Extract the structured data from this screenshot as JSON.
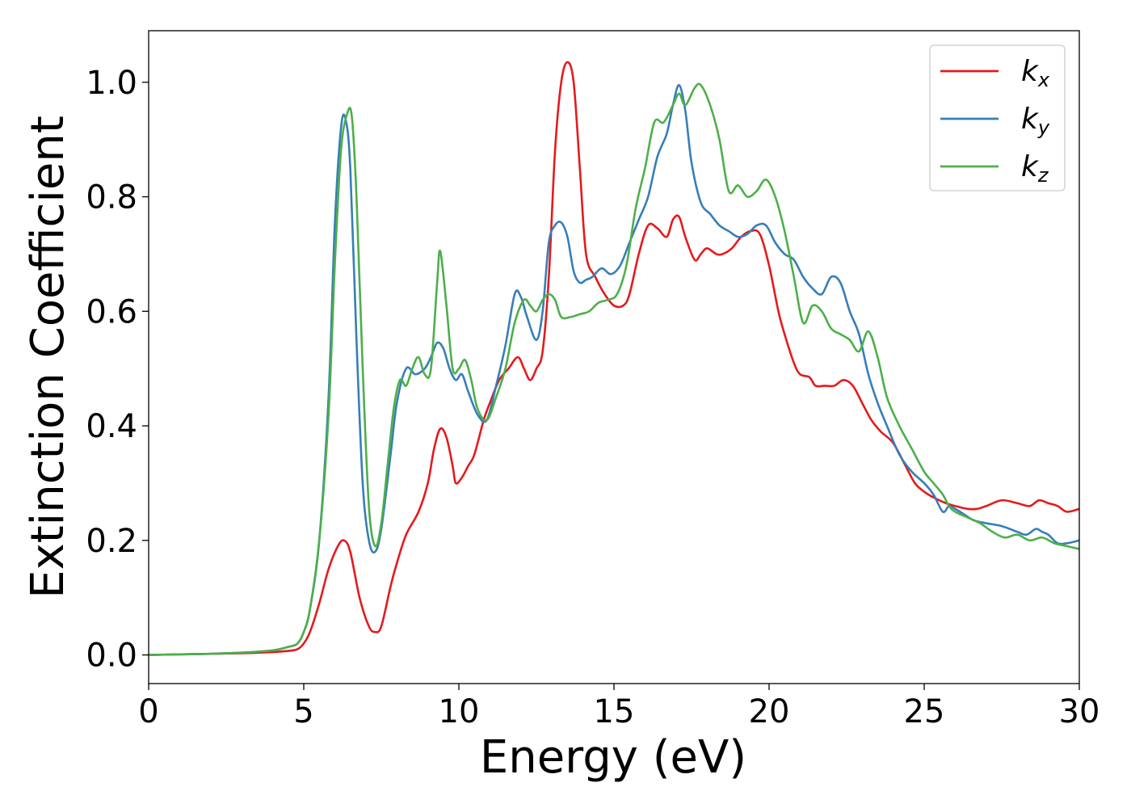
{
  "chart_data": {
    "type": "line",
    "xlabel": "Energy (eV)",
    "ylabel": "Extinction Coefficient",
    "xlim": [
      0,
      30
    ],
    "ylim": [
      -0.05,
      1.09
    ],
    "xticks": [
      0,
      5,
      10,
      15,
      20,
      25,
      30
    ],
    "xtick_labels": [
      "0",
      "5",
      "10",
      "15",
      "20",
      "25",
      "30"
    ],
    "yticks": [
      0.0,
      0.2,
      0.4,
      0.6,
      0.8,
      1.0
    ],
    "ytick_labels": [
      "0.0",
      "0.2",
      "0.4",
      "0.6",
      "0.8",
      "1.0"
    ],
    "grid": false,
    "legend_position": "top-right",
    "series": [
      {
        "name": "k_x",
        "label_base": "k",
        "label_sub": "x",
        "color": "#e41a1c",
        "x": [
          0,
          1,
          2,
          3,
          4,
          4.5,
          4.8,
          5.0,
          5.2,
          5.5,
          5.8,
          6.1,
          6.3,
          6.5,
          6.8,
          7.1,
          7.3,
          7.5,
          7.8,
          8.0,
          8.3,
          8.7,
          9.0,
          9.2,
          9.4,
          9.6,
          9.8,
          9.9,
          10.1,
          10.3,
          10.5,
          10.8,
          11.0,
          11.3,
          11.6,
          11.9,
          12.1,
          12.3,
          12.5,
          12.7,
          12.9,
          13.1,
          13.3,
          13.5,
          13.7,
          13.9,
          14.1,
          14.4,
          14.7,
          15.0,
          15.3,
          15.5,
          15.8,
          16.1,
          16.4,
          16.7,
          16.9,
          17.1,
          17.3,
          17.6,
          17.8,
          18.0,
          18.3,
          18.5,
          18.8,
          19.1,
          19.4,
          19.7,
          20.0,
          20.3,
          20.5,
          20.8,
          21.0,
          21.3,
          21.5,
          21.8,
          22.1,
          22.4,
          22.7,
          23.0,
          23.3,
          23.6,
          24.0,
          24.4,
          24.7,
          25.0,
          25.3,
          25.7,
          26.0,
          26.4,
          26.7,
          27.0,
          27.5,
          28.0,
          28.4,
          28.7,
          29.0,
          29.3,
          29.6,
          30.0
        ],
        "y": [
          0.0,
          0.001,
          0.002,
          0.003,
          0.005,
          0.007,
          0.01,
          0.02,
          0.04,
          0.09,
          0.15,
          0.19,
          0.2,
          0.18,
          0.1,
          0.05,
          0.04,
          0.05,
          0.12,
          0.16,
          0.21,
          0.25,
          0.3,
          0.36,
          0.395,
          0.38,
          0.33,
          0.3,
          0.31,
          0.33,
          0.35,
          0.41,
          0.44,
          0.48,
          0.5,
          0.52,
          0.5,
          0.48,
          0.5,
          0.53,
          0.66,
          0.88,
          1.0,
          1.035,
          1.0,
          0.85,
          0.7,
          0.66,
          0.63,
          0.61,
          0.61,
          0.63,
          0.7,
          0.75,
          0.745,
          0.73,
          0.76,
          0.765,
          0.73,
          0.69,
          0.7,
          0.71,
          0.7,
          0.7,
          0.71,
          0.73,
          0.74,
          0.735,
          0.68,
          0.6,
          0.56,
          0.51,
          0.49,
          0.485,
          0.47,
          0.47,
          0.47,
          0.48,
          0.47,
          0.44,
          0.41,
          0.39,
          0.37,
          0.33,
          0.3,
          0.285,
          0.275,
          0.265,
          0.26,
          0.255,
          0.255,
          0.26,
          0.27,
          0.265,
          0.26,
          0.27,
          0.265,
          0.26,
          0.25,
          0.255
        ]
      },
      {
        "name": "k_y",
        "label_base": "k",
        "label_sub": "y",
        "color": "#377eb8",
        "x": [
          0,
          1,
          2,
          3,
          4,
          4.5,
          4.8,
          5.0,
          5.2,
          5.5,
          5.8,
          6.0,
          6.2,
          6.35,
          6.5,
          6.7,
          6.9,
          7.1,
          7.3,
          7.5,
          7.8,
          8.0,
          8.3,
          8.6,
          8.9,
          9.1,
          9.3,
          9.5,
          9.7,
          9.9,
          10.1,
          10.3,
          10.6,
          10.9,
          11.2,
          11.5,
          11.8,
          12.0,
          12.2,
          12.5,
          12.7,
          12.9,
          13.1,
          13.3,
          13.5,
          13.7,
          13.9,
          14.1,
          14.3,
          14.6,
          14.9,
          15.2,
          15.5,
          15.8,
          16.1,
          16.4,
          16.7,
          16.9,
          17.1,
          17.3,
          17.5,
          17.8,
          18.1,
          18.4,
          18.7,
          19.0,
          19.3,
          19.6,
          19.9,
          20.2,
          20.5,
          20.8,
          21.1,
          21.4,
          21.7,
          22.0,
          22.3,
          22.6,
          22.9,
          23.2,
          23.5,
          23.8,
          24.2,
          24.6,
          25.0,
          25.3,
          25.6,
          25.8,
          26.0,
          26.3,
          26.6,
          27.0,
          27.5,
          28.0,
          28.3,
          28.6,
          28.8,
          29.0,
          29.3,
          29.6,
          30.0
        ],
        "y": [
          0.0,
          0.001,
          0.002,
          0.004,
          0.008,
          0.014,
          0.02,
          0.04,
          0.08,
          0.2,
          0.45,
          0.75,
          0.92,
          0.935,
          0.85,
          0.55,
          0.3,
          0.2,
          0.18,
          0.22,
          0.35,
          0.44,
          0.5,
          0.49,
          0.5,
          0.52,
          0.545,
          0.535,
          0.5,
          0.48,
          0.49,
          0.46,
          0.42,
          0.41,
          0.47,
          0.54,
          0.63,
          0.625,
          0.59,
          0.55,
          0.6,
          0.72,
          0.75,
          0.755,
          0.73,
          0.67,
          0.65,
          0.655,
          0.66,
          0.675,
          0.665,
          0.68,
          0.72,
          0.76,
          0.8,
          0.87,
          0.91,
          0.96,
          0.995,
          0.95,
          0.86,
          0.79,
          0.77,
          0.75,
          0.74,
          0.73,
          0.735,
          0.75,
          0.75,
          0.72,
          0.7,
          0.69,
          0.66,
          0.64,
          0.63,
          0.66,
          0.65,
          0.6,
          0.56,
          0.49,
          0.44,
          0.4,
          0.35,
          0.32,
          0.3,
          0.28,
          0.25,
          0.26,
          0.255,
          0.245,
          0.235,
          0.23,
          0.225,
          0.215,
          0.21,
          0.22,
          0.215,
          0.21,
          0.195,
          0.195,
          0.2
        ]
      },
      {
        "name": "k_z",
        "label_base": "k",
        "label_sub": "z",
        "color": "#4daf4a",
        "x": [
          0,
          1,
          2,
          3,
          4,
          4.5,
          4.8,
          5.0,
          5.2,
          5.5,
          5.8,
          6.0,
          6.2,
          6.4,
          6.55,
          6.7,
          6.9,
          7.1,
          7.3,
          7.5,
          7.7,
          7.9,
          8.1,
          8.3,
          8.5,
          8.7,
          8.9,
          9.1,
          9.3,
          9.4,
          9.6,
          9.8,
          10.0,
          10.2,
          10.4,
          10.6,
          10.9,
          11.2,
          11.5,
          11.8,
          12.1,
          12.3,
          12.5,
          12.7,
          12.9,
          13.1,
          13.3,
          13.6,
          13.9,
          14.2,
          14.5,
          14.8,
          15.1,
          15.4,
          15.7,
          16.0,
          16.3,
          16.6,
          16.9,
          17.1,
          17.3,
          17.6,
          17.8,
          18.1,
          18.4,
          18.7,
          19.0,
          19.3,
          19.6,
          19.9,
          20.2,
          20.5,
          20.8,
          21.1,
          21.4,
          21.7,
          22.0,
          22.3,
          22.6,
          22.9,
          23.2,
          23.5,
          23.8,
          24.2,
          24.6,
          25.0,
          25.3,
          25.6,
          25.8,
          26.0,
          26.4,
          26.8,
          27.2,
          27.6,
          28.0,
          28.4,
          28.8,
          29.2,
          29.6,
          30.0
        ],
        "y": [
          0.0,
          0.001,
          0.002,
          0.004,
          0.008,
          0.014,
          0.02,
          0.04,
          0.08,
          0.2,
          0.42,
          0.68,
          0.88,
          0.945,
          0.94,
          0.8,
          0.5,
          0.26,
          0.19,
          0.23,
          0.33,
          0.43,
          0.48,
          0.47,
          0.5,
          0.52,
          0.49,
          0.5,
          0.65,
          0.705,
          0.61,
          0.5,
          0.5,
          0.515,
          0.48,
          0.43,
          0.41,
          0.45,
          0.5,
          0.58,
          0.62,
          0.61,
          0.6,
          0.62,
          0.63,
          0.62,
          0.59,
          0.59,
          0.595,
          0.6,
          0.615,
          0.62,
          0.63,
          0.68,
          0.78,
          0.85,
          0.93,
          0.93,
          0.96,
          0.98,
          0.96,
          0.99,
          0.995,
          0.96,
          0.9,
          0.81,
          0.82,
          0.8,
          0.81,
          0.83,
          0.8,
          0.74,
          0.66,
          0.58,
          0.61,
          0.6,
          0.57,
          0.56,
          0.55,
          0.53,
          0.565,
          0.52,
          0.45,
          0.4,
          0.36,
          0.32,
          0.3,
          0.28,
          0.26,
          0.25,
          0.24,
          0.23,
          0.215,
          0.205,
          0.21,
          0.2,
          0.205,
          0.195,
          0.19,
          0.185
        ]
      }
    ]
  }
}
